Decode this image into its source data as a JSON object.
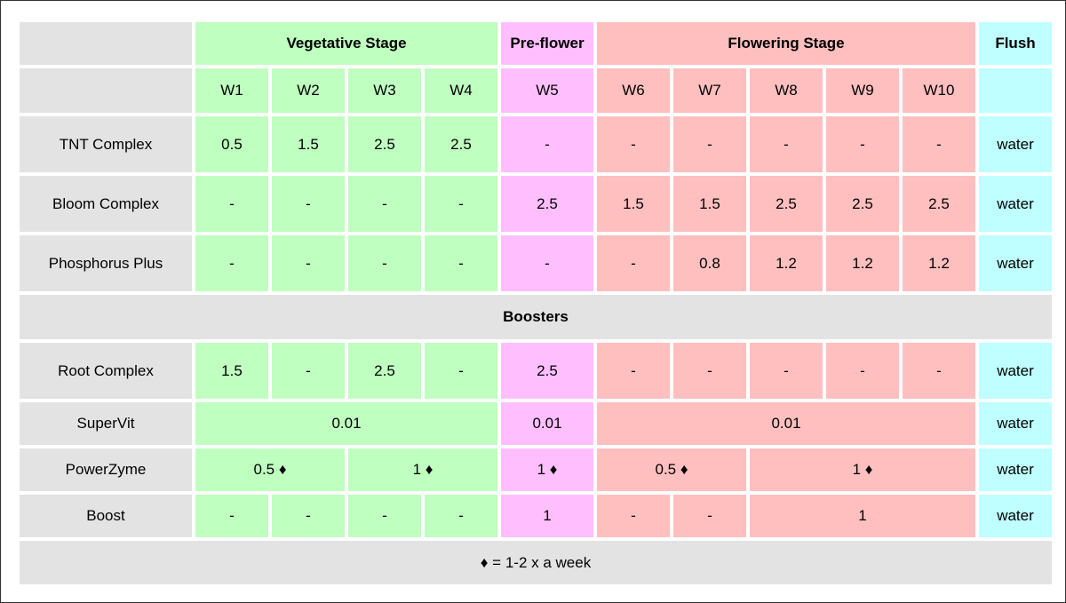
{
  "header": {
    "stages": {
      "vegetative": "Vegetative Stage",
      "preflower": "Pre-flower",
      "flowering": "Flowering Stage",
      "flush": "Flush"
    },
    "weeks": [
      "W1",
      "W2",
      "W3",
      "W4",
      "W5",
      "W6",
      "W7",
      "W8",
      "W9",
      "W10"
    ]
  },
  "rows": {
    "tnt": {
      "label": "TNT Complex",
      "cells": [
        "0.5",
        "1.5",
        "2.5",
        "2.5",
        "-",
        "-",
        "-",
        "-",
        "-",
        "-",
        "water"
      ]
    },
    "bloom": {
      "label": "Bloom Complex",
      "cells": [
        "-",
        "-",
        "-",
        "-",
        "2.5",
        "1.5",
        "1.5",
        "2.5",
        "2.5",
        "2.5",
        "water"
      ]
    },
    "phos": {
      "label": "Phosphorus Plus",
      "cells": [
        "-",
        "-",
        "-",
        "-",
        "-",
        "-",
        "0.8",
        "1.2",
        "1.2",
        "1.2",
        "water"
      ]
    }
  },
  "boosters_title": "Boosters",
  "boosters": {
    "root": {
      "label": "Root Complex",
      "cells": [
        "1.5",
        "-",
        "2.5",
        "-",
        "2.5",
        "-",
        "-",
        "-",
        "-",
        "-",
        "water"
      ]
    },
    "supervit": {
      "label": "SuperVit",
      "veg": "0.01",
      "pre": "0.01",
      "flower": "0.01",
      "flush": "water"
    },
    "powerzyme": {
      "label": "PowerZyme",
      "veg_a": "0.5 ♦",
      "veg_b": "1 ♦",
      "pre": "1 ♦",
      "flo_a": "0.5 ♦",
      "flo_b": "1 ♦",
      "flush": "water"
    },
    "boost": {
      "label": "Boost",
      "w1": "-",
      "w2": "-",
      "w3": "-",
      "w4": "-",
      "w5": "1",
      "w6": "-",
      "w7": "-",
      "w8_10": "1",
      "flush": "water"
    }
  },
  "footnote": "♦ = 1-2 x a week",
  "colors": {
    "label_bg": "#e3e3e3",
    "vegetative_bg": "#bfffc0",
    "preflower_bg": "#ffbfff",
    "flowering_bg": "#ffbfbf",
    "flush_bg": "#bfffff"
  }
}
